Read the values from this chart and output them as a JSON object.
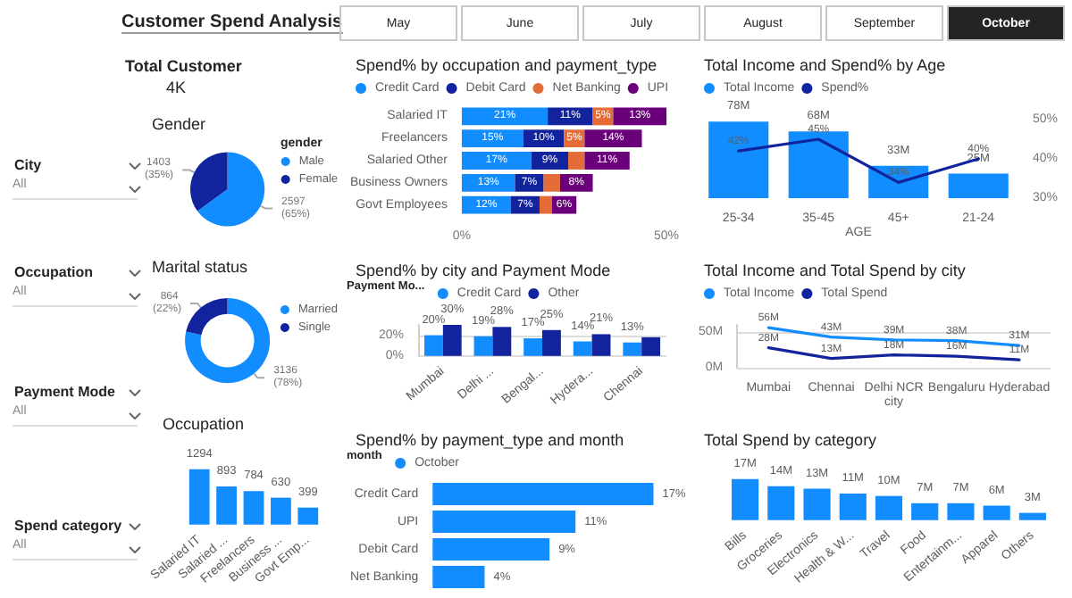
{
  "chart_data": [
    {
      "type": "other",
      "title": "Customer Spend Analysis",
      "annotations": [
        "Total Customer",
        "4K",
        "May",
        "June",
        "July",
        "August",
        "September",
        "October",
        "City",
        "All",
        "Occupation",
        "All",
        "Payment Mode",
        "All",
        "Spend category",
        "All"
      ]
    },
    {
      "type": "pie",
      "title": "Gender",
      "categories": [
        "Male",
        "Female"
      ],
      "values": [
        2597,
        1403
      ],
      "colors": [
        "#118dff",
        "#12239e"
      ],
      "value_labels": [
        "2597 (65%)",
        "1403 (35%)"
      ],
      "legend": "right",
      "legend_title": "gender"
    },
    {
      "type": "donut",
      "title": "Marital status",
      "categories": [
        "Married",
        "Single"
      ],
      "values": [
        3136,
        864
      ],
      "colors": [
        "#118dff",
        "#12239e"
      ],
      "value_labels": [
        "3136 (78%)",
        "864 (22%)"
      ],
      "legend": "right"
    },
    {
      "type": "bar",
      "title": "Occupation",
      "categories": [
        "Salaried IT",
        "Salaried ...",
        "Freelancers",
        "Business ...",
        "Govt Emp..."
      ],
      "values": [
        1294,
        893,
        784,
        630,
        399
      ],
      "color": "#118dff",
      "data_labels": true,
      "tick_labels": "x"
    },
    {
      "type": "bar",
      "title": "Spend% by occupation and payment_type",
      "orientation": "horizontal",
      "stacked": true,
      "categories": [
        "Salaried IT",
        "Freelancers",
        "Salaried Other",
        "Business Owners",
        "Govt Employees"
      ],
      "xlim": [
        0,
        50
      ],
      "xticks": [
        {
          "value": 0,
          "label": "0%"
        },
        {
          "value": 50,
          "label": "50%"
        }
      ],
      "legend": "top left",
      "series": [
        {
          "name": "Credit Card",
          "color": "#118dff",
          "values": [
            21,
            15,
            17,
            13,
            12
          ],
          "value_labels": [
            "21%",
            "15%",
            "17%",
            "13%",
            "12%"
          ]
        },
        {
          "name": "Debit Card",
          "color": "#12239e",
          "values": [
            11,
            10,
            9,
            7,
            7
          ],
          "value_labels": [
            "11%",
            "10%",
            "9%",
            "7%",
            "7%"
          ]
        },
        {
          "name": "Net Banking",
          "color": "#e66c37",
          "values": [
            5,
            5,
            4,
            4,
            3
          ],
          "value_labels": [
            "5%",
            "5%",
            null,
            null,
            null
          ]
        },
        {
          "name": "UPI",
          "color": "#6b007b",
          "values": [
            13,
            14,
            11,
            8,
            6
          ],
          "value_labels": [
            "13%",
            "14%",
            "11%",
            "8%",
            "6%"
          ]
        }
      ]
    },
    {
      "type": "bar",
      "title": "Spend% by city and Payment Mode",
      "categories": [
        "Mumbai",
        "Delhi ...",
        "Bengal...",
        "Hydera...",
        "Chennai"
      ],
      "ylim": [
        0,
        30
      ],
      "yticks": [
        {
          "value": 0,
          "label": "0%"
        },
        {
          "value": 20,
          "label": "20%"
        }
      ],
      "grid": "y",
      "legend": "top left",
      "legend_title": "Payment Mo...",
      "series": [
        {
          "name": "Credit Card",
          "color": "#118dff",
          "values": [
            20,
            19,
            17,
            14,
            13
          ],
          "value_labels": [
            "20%",
            "19%",
            "17%",
            "14%",
            "13%"
          ]
        },
        {
          "name": "Other",
          "color": "#12239e",
          "values": [
            30,
            28,
            25,
            21,
            18
          ],
          "value_labels": [
            "30%",
            "28%",
            "25%",
            "21%",
            null
          ]
        }
      ]
    },
    {
      "type": "bar",
      "title": "Total Income and Spend% by Age",
      "categories": [
        "25-34",
        "35-45",
        "45+",
        "21-24"
      ],
      "xlabel": "AGE",
      "y2lim": [
        30,
        50
      ],
      "y2ticks": [
        {
          "value": 30,
          "label": "30%"
        },
        {
          "value": 40,
          "label": "40%"
        },
        {
          "value": 50,
          "label": "50%"
        }
      ],
      "legend": "top left",
      "series": [
        {
          "name": "Total Income",
          "color": "#118dff",
          "values": [
            78,
            68,
            33,
            25
          ],
          "value_labels": [
            "78M",
            "68M",
            "33M",
            "25M"
          ]
        },
        {
          "name": "Spend%",
          "type": "line",
          "axis": "y2",
          "color": "#12239e",
          "values": [
            42,
            45,
            34,
            40
          ],
          "value_labels": [
            "42%",
            "45%",
            "34%",
            "40%"
          ],
          "marker": "none",
          "line_style": "solid"
        }
      ]
    },
    {
      "type": "line",
      "title": "Total Income and Total Spend by city",
      "categories": [
        "Mumbai",
        "Chennai",
        "Delhi NCR",
        "Bengaluru",
        "Hyderabad"
      ],
      "xlabel": "city",
      "ylim": [
        0,
        60
      ],
      "yticks": [
        {
          "value": 0,
          "label": "0M"
        },
        {
          "value": 50,
          "label": "50M"
        }
      ],
      "grid": "y",
      "legend": "top left",
      "marker": "none",
      "line_style": "solid",
      "series": [
        {
          "name": "Total Income",
          "color": "#118dff",
          "values": [
            56,
            43,
            39,
            38,
            31
          ],
          "value_labels": [
            "56M",
            "43M",
            "39M",
            "38M",
            "31M"
          ]
        },
        {
          "name": "Total Spend",
          "color": "#12239e",
          "values": [
            28,
            13,
            18,
            16,
            11
          ],
          "value_labels": [
            "28M",
            "13M",
            "18M",
            "16M",
            "11M"
          ]
        }
      ]
    },
    {
      "type": "bar",
      "title": "Spend% by payment_type and month",
      "orientation": "horizontal",
      "categories": [
        "Credit Card",
        "UPI",
        "Debit Card",
        "Net Banking"
      ],
      "legend": "top left",
      "legend_title": "month",
      "tick_labels": "y",
      "series": [
        {
          "name": "October",
          "color": "#118dff",
          "values": [
            17,
            11,
            9,
            4
          ],
          "value_labels": [
            "17%",
            "11%",
            "9%",
            "4%"
          ]
        }
      ]
    },
    {
      "type": "bar",
      "title": "Total Spend by category",
      "categories": [
        "Bills",
        "Groceries",
        "Electronics",
        "Health & W...",
        "Travel",
        "Food",
        "Entertainm...",
        "Apparel",
        "Others"
      ],
      "values": [
        17,
        14,
        13,
        11,
        10,
        7,
        7,
        6,
        3
      ],
      "color": "#118dff",
      "value_labels": [
        "17M",
        "14M",
        "13M",
        "11M",
        "10M",
        "7M",
        "7M",
        "6M",
        "3M"
      ],
      "tick_labels": "x"
    }
  ]
}
